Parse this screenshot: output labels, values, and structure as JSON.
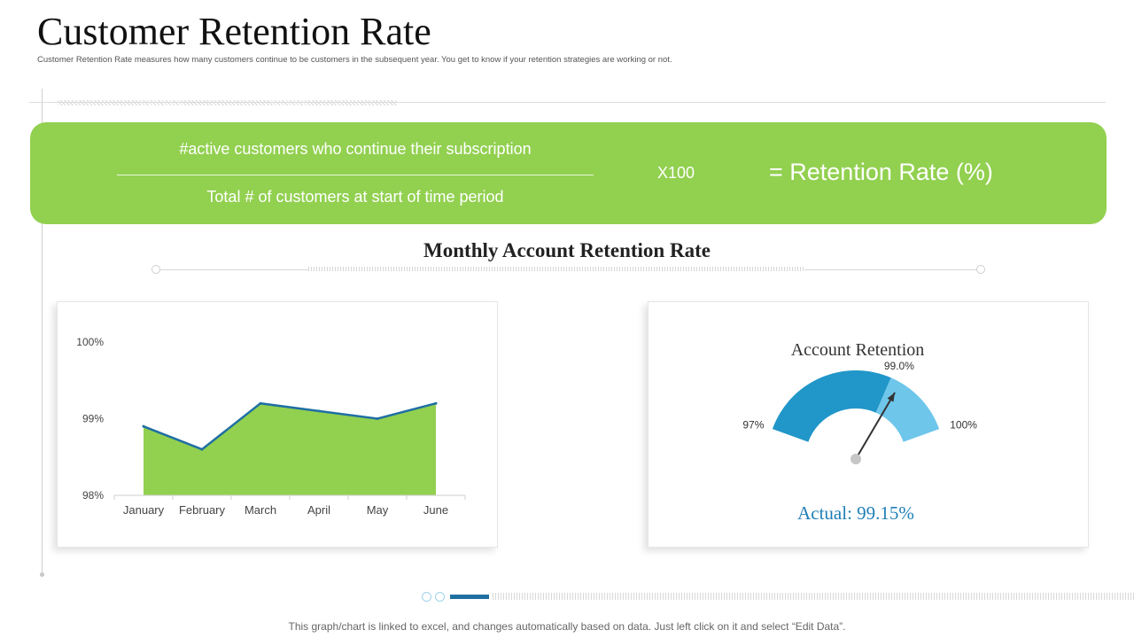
{
  "header": {
    "title": "Customer Retention Rate",
    "subtitle": "Customer Retention Rate measures how many customers continue to be customers in the subsequent year. You get to know if your retention strategies are working or not."
  },
  "formula": {
    "numerator": "#active customers who continue their subscription",
    "denominator": "Total # of customers at start of time period",
    "multiplier": "X100",
    "result": "= Retention Rate (%)"
  },
  "section": {
    "title": "Monthly Account Retention Rate"
  },
  "footer": {
    "note": "This graph/chart is linked to excel,  and changes automatically based on data. Just left click on it and select “Edit Data”."
  },
  "colors": {
    "accent_green": "#92d050",
    "line_blue": "#1f6fa3",
    "gauge_dark": "#2196c8",
    "gauge_light": "#6ec6ea",
    "actual_text": "#1f7fb5"
  },
  "chart_data": [
    {
      "type": "area",
      "title": "",
      "xlabel": "",
      "ylabel": "",
      "categories": [
        "January",
        "February",
        "March",
        "April",
        "May",
        "June"
      ],
      "values": [
        98.9,
        98.6,
        99.2,
        99.1,
        99.0,
        99.2
      ],
      "ylim": [
        98,
        100
      ],
      "yticks": [
        98,
        99,
        100
      ],
      "ytick_labels": [
        "98%",
        "99%",
        "100%"
      ],
      "grid": false
    },
    {
      "type": "gauge",
      "title": "Account Retention",
      "min": 97,
      "max": 100,
      "min_label": "97%",
      "max_label": "100%",
      "target": 99.0,
      "target_label": "99.0%",
      "actual": 99.15,
      "actual_label": "Actual: 99.15%"
    }
  ]
}
